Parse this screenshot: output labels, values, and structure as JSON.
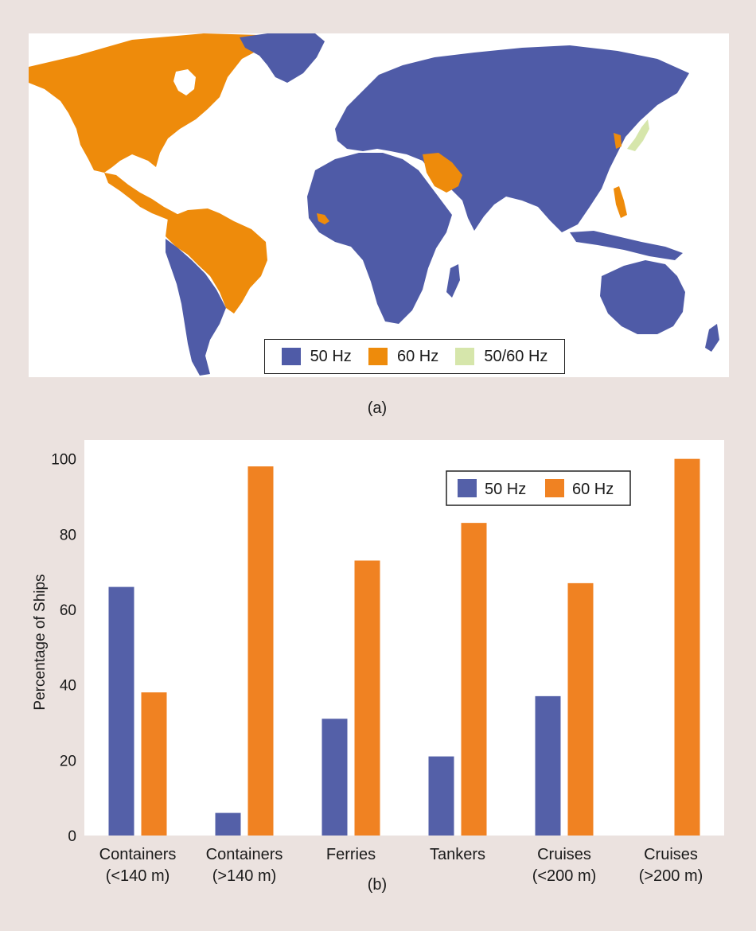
{
  "map": {
    "label": "(a)",
    "legend": [
      {
        "label": "50 Hz",
        "color": "#4f5ba7"
      },
      {
        "label": "60 Hz",
        "color": "#ee8b0b"
      },
      {
        "label": "50/60 Hz",
        "color": "#d6e6ab"
      }
    ],
    "colors": {
      "hz50": "#4f5ba7",
      "hz60": "#ee8b0b",
      "mixed": "#d6e6ab",
      "ocean": "#ffffff"
    }
  },
  "chart_label": "(b)",
  "chart_data": {
    "type": "bar",
    "title": "",
    "xlabel": "",
    "ylabel": "Percentage of Ships",
    "ylim": [
      0,
      105
    ],
    "yticks": [
      0,
      20,
      40,
      60,
      80,
      100
    ],
    "grid": false,
    "legend_placement": "top-right",
    "categories": [
      {
        "line1": "Containers",
        "line2": "(<140 m)"
      },
      {
        "line1": "Containers",
        "line2": "(>140 m)"
      },
      {
        "line1": "Ferries",
        "line2": ""
      },
      {
        "line1": "Tankers",
        "line2": ""
      },
      {
        "line1": "Cruises",
        "line2": "(<200 m)"
      },
      {
        "line1": "Cruises",
        "line2": "(>200 m)"
      }
    ],
    "series": [
      {
        "name": "50 Hz",
        "color": "#5460a8",
        "values": [
          66,
          6,
          31,
          21,
          37,
          0
        ]
      },
      {
        "name": "60 Hz",
        "color": "#f08222",
        "values": [
          38,
          98,
          73,
          83,
          67,
          100
        ]
      }
    ]
  }
}
